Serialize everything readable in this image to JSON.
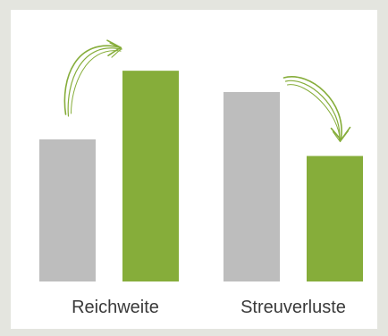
{
  "chart_data": {
    "type": "bar",
    "categories": [
      "Reichweite",
      "Streuverluste"
    ],
    "series": [
      {
        "values": [
          60,
          80
        ]
      },
      {
        "values": [
          89,
          53
        ]
      }
    ],
    "colors": [
      "#bdbdbd",
      "#86ad3a"
    ],
    "annotations": [
      {
        "category": "Reichweite",
        "arrow": "up"
      },
      {
        "category": "Streuverluste",
        "arrow": "down"
      }
    ],
    "ylim": [
      0,
      100
    ],
    "grid": false,
    "axes_visible": false
  }
}
